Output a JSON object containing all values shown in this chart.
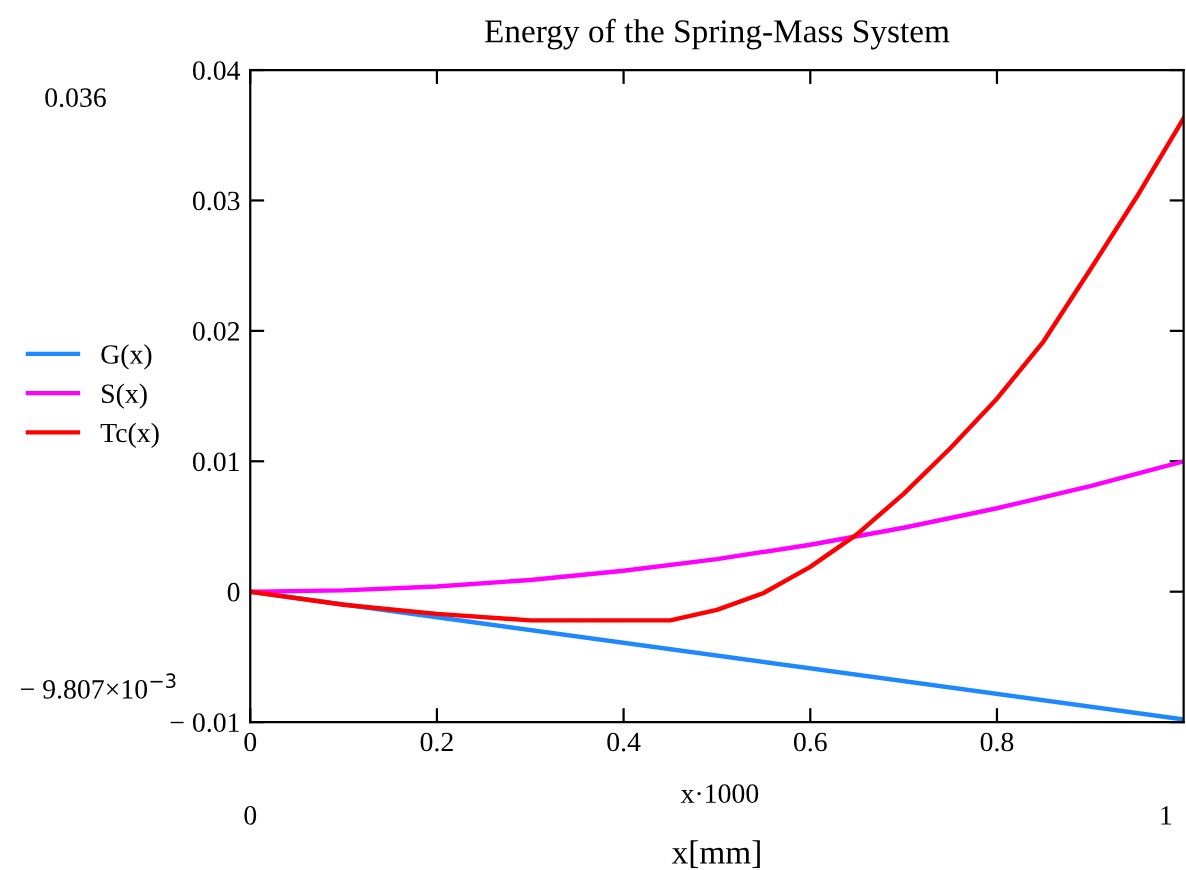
{
  "chart_data": {
    "type": "line",
    "title": "Energy of the Spring-Mass System",
    "xlabel": "x[mm]",
    "series": [
      {
        "name": "G(x)",
        "color": "#1e88ff",
        "x": [
          0,
          1
        ],
        "values": [
          0,
          -0.0098
        ]
      },
      {
        "name": "S(x)",
        "color": "#ff00ff",
        "x": [
          0,
          0.1,
          0.2,
          0.3,
          0.4,
          0.5,
          0.6,
          0.7,
          0.8,
          0.9,
          1
        ],
        "values": [
          0,
          0.0001,
          0.0004,
          0.0009,
          0.0016,
          0.0025,
          0.0036,
          0.0049,
          0.0064,
          0.0081,
          0.01
        ]
      },
      {
        "name": "Tc(x)",
        "color": "#ff0000",
        "x": [
          0,
          0.1,
          0.2,
          0.3,
          0.45,
          0.5,
          0.55,
          0.6,
          0.65,
          0.7,
          0.75,
          0.8,
          0.85,
          0.9,
          0.95,
          1
        ],
        "values": [
          0,
          -0.001,
          -0.0017,
          -0.0022,
          -0.0022,
          -0.0014,
          -0.0001,
          0.0019,
          0.0044,
          0.0075,
          0.011,
          0.0148,
          0.0192,
          0.0247,
          0.0303,
          0.0363
        ]
      }
    ],
    "xlim": [
      0,
      1
    ],
    "ylim": [
      -0.01,
      0.04
    ],
    "xticks": [
      0,
      0.2,
      0.4,
      0.6,
      0.8
    ],
    "yticks": [
      {
        "value": -0.01,
        "label": "− 0.01"
      },
      0,
      0.01,
      0.02,
      0.03,
      0.04
    ],
    "annotations": [
      "0.036",
      "− 9.807×10$^{−3}$",
      "0",
      "1",
      "x·1000"
    ],
    "legend": "left",
    "grid": false,
    "line_style": "solid",
    "marker": "none"
  }
}
